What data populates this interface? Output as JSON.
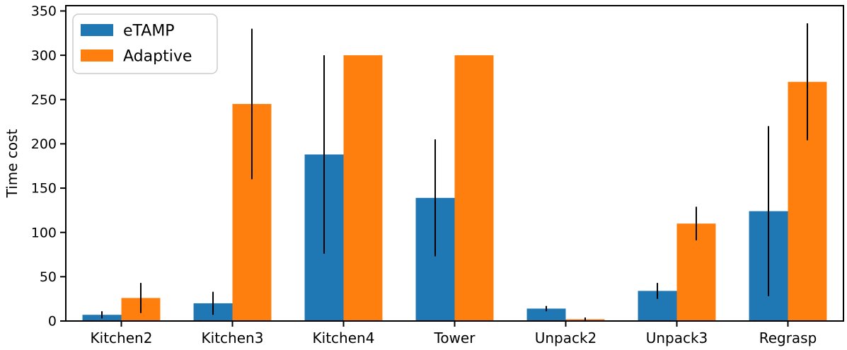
{
  "chart_data": {
    "type": "bar",
    "categories": [
      "Kitchen2",
      "Kitchen3",
      "Kitchen4",
      "Tower",
      "Unpack2",
      "Unpack3",
      "Regrasp"
    ],
    "series": [
      {
        "name": "eTAMP",
        "color": "#1f77b4",
        "values": [
          7,
          20,
          188,
          139,
          14,
          34,
          124
        ],
        "errors": [
          4,
          13,
          112,
          66,
          3,
          9,
          96
        ]
      },
      {
        "name": "Adaptive",
        "color": "#ff7f0e",
        "values": [
          26,
          245,
          300,
          300,
          2,
          110,
          270
        ],
        "errors": [
          17,
          85,
          0,
          0,
          2,
          19,
          66
        ]
      }
    ],
    "title": "",
    "xlabel": "",
    "ylabel": "Time cost",
    "ylim": [
      0,
      356
    ],
    "yticks": [
      0,
      50,
      100,
      150,
      200,
      250,
      300,
      350
    ],
    "grid": false,
    "legend_position": "upper-left",
    "axis_color": "#000000",
    "error_bar_color": "#000000",
    "legend_border_color": "#cccccc",
    "background_color": "#ffffff"
  }
}
